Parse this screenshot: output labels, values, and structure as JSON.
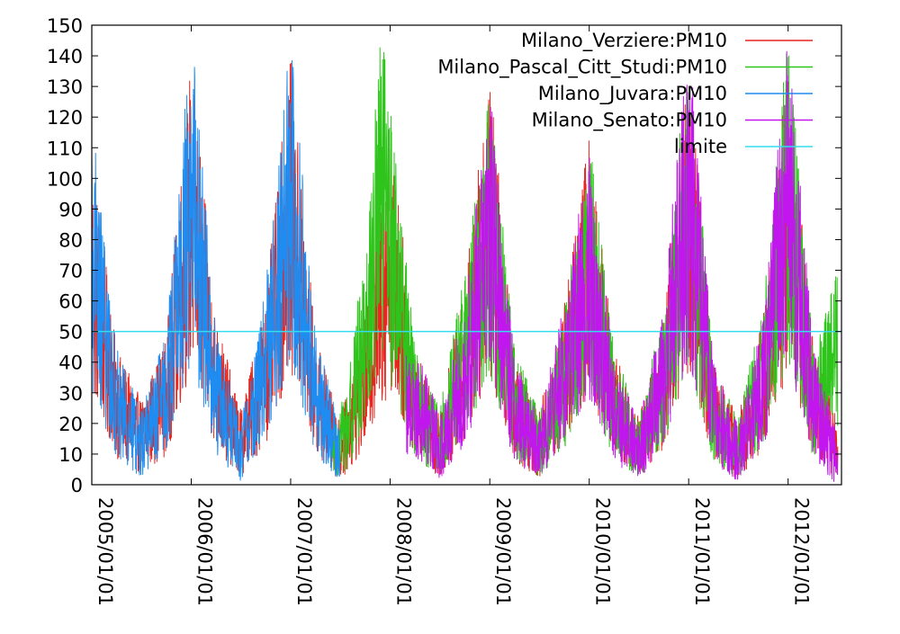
{
  "chart_data": {
    "type": "line",
    "title": "",
    "xlabel": "",
    "ylabel": "",
    "ylim": [
      0,
      150
    ],
    "xlim": [
      "2005-01-01",
      "2012-07-15"
    ],
    "y_ticks": [
      "0",
      "10",
      "20",
      "30",
      "40",
      "50",
      "60",
      "70",
      "80",
      "90",
      "100",
      "110",
      "120",
      "130",
      "140",
      "150"
    ],
    "x_ticks": [
      "2005/01/01",
      "2006/01/01",
      "2007/01/01",
      "2008/01/01",
      "2009/01/01",
      "2010/01/01",
      "2011/01/01",
      "2012/01/01"
    ],
    "grid": false,
    "legend_position": "top-right",
    "limit": {
      "name": "limite",
      "value": 50,
      "color": "#33ddee"
    },
    "series": [
      {
        "name": "Milano_Verziere:PM10",
        "color": "#e8251f",
        "x": [
          "2005-01",
          "2005-04",
          "2005-07",
          "2005-10",
          "2006-01",
          "2006-04",
          "2006-07",
          "2006-10",
          "2007-01",
          "2007-04",
          "2007-07",
          "2007-10",
          "2008-01",
          "2008-04",
          "2008-07",
          "2008-10",
          "2009-01",
          "2009-04",
          "2009-07",
          "2009-10",
          "2010-01",
          "2010-04",
          "2010-07",
          "2010-10",
          "2011-01",
          "2011-04",
          "2011-07",
          "2011-10",
          "2012-01",
          "2012-04",
          "2012-07"
        ],
        "values": [
          110,
          45,
          28,
          48,
          140,
          55,
          25,
          60,
          140,
          50,
          20,
          55,
          120,
          45,
          25,
          65,
          135,
          42,
          24,
          60,
          115,
          45,
          22,
          55,
          140,
          42,
          22,
          55,
          140,
          48,
          20
        ]
      },
      {
        "name": "Milano_Pascal_Citt_Studi:PM10",
        "color": "#2ec41b",
        "x": [
          "2007-06",
          "2007-08",
          "2007-10",
          "2007-12",
          "2008-02",
          "2008-04",
          "2008-07",
          "2008-10",
          "2009-01",
          "2009-04",
          "2009-07",
          "2009-10",
          "2010-01",
          "2010-04",
          "2010-07",
          "2010-10",
          "2011-01",
          "2011-04",
          "2011-07",
          "2011-10",
          "2012-01",
          "2012-04",
          "2012-07"
        ],
        "values": [
          18,
          35,
          80,
          150,
          100,
          45,
          25,
          70,
          130,
          45,
          25,
          55,
          115,
          45,
          22,
          58,
          145,
          40,
          22,
          60,
          150,
          45,
          70
        ]
      },
      {
        "name": "Milano_Juvara:PM10",
        "color": "#1e8cf0",
        "x": [
          "2005-01",
          "2005-04",
          "2005-07",
          "2005-10",
          "2006-01",
          "2006-04",
          "2006-07",
          "2006-10",
          "2007-01",
          "2007-04",
          "2007-07"
        ],
        "values": [
          120,
          45,
          25,
          50,
          150,
          50,
          20,
          65,
          150,
          50,
          20
        ]
      },
      {
        "name": "Milano_Senato:PM10",
        "color": "#c117ee",
        "x": [
          "2008-03",
          "2008-05",
          "2008-07",
          "2008-10",
          "2009-01",
          "2009-04",
          "2009-07",
          "2009-10",
          "2010-01",
          "2010-04",
          "2010-07",
          "2010-10",
          "2011-01",
          "2011-04",
          "2011-07",
          "2011-10",
          "2012-01",
          "2012-04",
          "2012-07"
        ],
        "values": [
          45,
          40,
          22,
          60,
          130,
          42,
          22,
          60,
          110,
          42,
          20,
          60,
          150,
          40,
          20,
          55,
          150,
          45,
          15
        ]
      }
    ]
  }
}
